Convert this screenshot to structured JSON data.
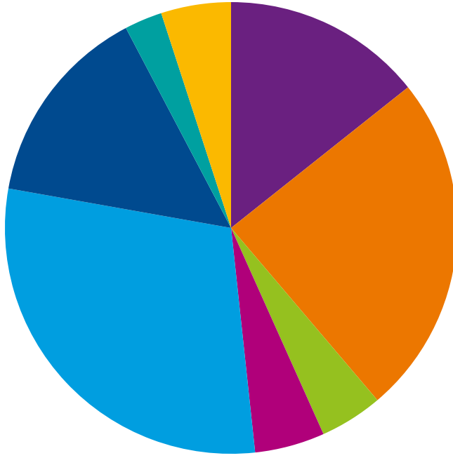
{
  "chart_data": {
    "type": "pie",
    "values": [
      14.3,
      24.5,
      4.5,
      5.0,
      29.5,
      14.5,
      2.7,
      5.0
    ],
    "colors": [
      "#6a2080",
      "#ec7700",
      "#95c11f",
      "#b0007a",
      "#009ee0",
      "#004a8f",
      "#00a0a0",
      "#fbb900"
    ]
  }
}
